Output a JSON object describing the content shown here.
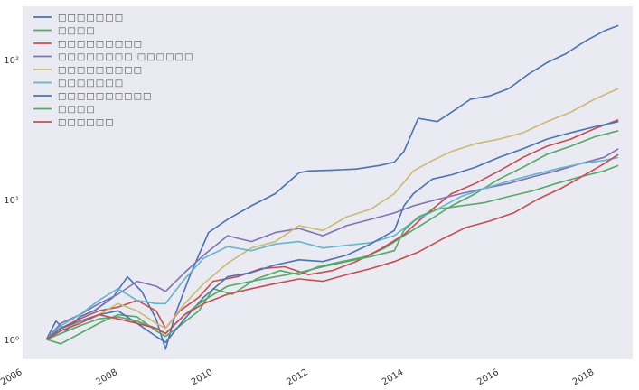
{
  "chart_data": {
    "type": "line",
    "title": "",
    "xlabel": "",
    "ylabel": "",
    "xlim": [
      2006.0,
      2018.8
    ],
    "ylim": [
      0.72,
      240
    ],
    "yscale": "log",
    "grid": false,
    "background": "#eaeaf2",
    "legend": {
      "location": "top-left"
    },
    "x_ticks": [
      2006,
      2008,
      2010,
      2012,
      2014,
      2016,
      2018
    ],
    "x_tick_labels": [
      "2006",
      "2008",
      "2010",
      "2012",
      "2014",
      "2016",
      "2018"
    ],
    "y_ticks": [
      1,
      10,
      100
    ],
    "y_tick_labels": [
      "10⁰",
      "10¹",
      "10²"
    ],
    "series": [
      {
        "name": "□□□□□□□",
        "color": "#4c72b0",
        "x": [
          2006.5,
          2006.7,
          2006.9,
          2007.2,
          2007.5,
          2007.9,
          2008.2,
          2008.5,
          2008.8,
          2009.0,
          2009.2,
          2009.5,
          2009.9,
          2010.3,
          2010.8,
          2011.3,
          2011.8,
          2012.0,
          2012.5,
          2013.0,
          2013.5,
          2013.8,
          2014.0,
          2014.3,
          2014.7,
          2015.0,
          2015.4,
          2015.8,
          2016.2,
          2016.6,
          2017.0,
          2017.4,
          2017.8,
          2018.2,
          2018.5
        ],
        "values": [
          1.0,
          1.35,
          1.15,
          1.45,
          1.6,
          2.0,
          2.8,
          2.2,
          1.4,
          0.85,
          1.5,
          2.8,
          5.8,
          7.2,
          9.0,
          11.0,
          15.5,
          16.0,
          16.2,
          16.5,
          17.5,
          18.5,
          22.0,
          38.0,
          36.0,
          42.0,
          52.0,
          55.0,
          62.0,
          78.0,
          95.0,
          110.0,
          135.0,
          160.0,
          175.0
        ]
      },
      {
        "name": "□□□□",
        "color": "#55a868",
        "x": [
          2006.5,
          2006.8,
          2007.2,
          2007.6,
          2008.0,
          2008.4,
          2008.8,
          2009.0,
          2009.3,
          2009.7,
          2010.0,
          2010.4,
          2010.9,
          2011.4,
          2011.8,
          2012.2,
          2012.7,
          2013.2,
          2013.6,
          2014.0,
          2014.5,
          2015.0,
          2015.5,
          2016.0,
          2016.5,
          2017.0,
          2017.5,
          2018.0,
          2018.5
        ],
        "values": [
          1.0,
          0.93,
          1.1,
          1.3,
          1.5,
          1.45,
          1.15,
          1.05,
          1.25,
          1.6,
          2.3,
          2.1,
          2.7,
          3.1,
          2.9,
          3.3,
          3.6,
          3.9,
          4.5,
          5.5,
          7.0,
          9.0,
          11.0,
          14.0,
          17.0,
          21.0,
          24.0,
          28.0,
          31.0
        ]
      },
      {
        "name": "□□□□□□□□□",
        "color": "#c44e52",
        "x": [
          2006.5,
          2006.8,
          2007.2,
          2007.6,
          2008.0,
          2008.4,
          2008.8,
          2009.0,
          2009.3,
          2009.7,
          2010.0,
          2010.5,
          2011.0,
          2011.5,
          2012.0,
          2012.5,
          2013.0,
          2013.5,
          2014.0,
          2014.5,
          2015.0,
          2015.5,
          2016.0,
          2016.5,
          2017.0,
          2017.5,
          2018.0,
          2018.5
        ],
        "values": [
          1.0,
          1.2,
          1.4,
          1.6,
          1.7,
          1.9,
          1.6,
          1.2,
          1.6,
          2.0,
          2.6,
          2.8,
          3.2,
          3.3,
          2.9,
          3.1,
          3.6,
          4.4,
          5.6,
          8.0,
          11.0,
          13.0,
          16.0,
          20.0,
          24.0,
          27.0,
          32.0,
          37.0
        ]
      },
      {
        "name": "□□□□□□□□ □□□□□□",
        "color": "#8172b2",
        "x": [
          2006.5,
          2006.8,
          2007.2,
          2007.6,
          2008.0,
          2008.4,
          2008.8,
          2009.0,
          2009.4,
          2009.8,
          2010.3,
          2010.8,
          2011.3,
          2011.8,
          2012.3,
          2012.8,
          2013.3,
          2013.8,
          2014.2,
          2014.7,
          2015.2,
          2015.7,
          2016.2,
          2016.7,
          2017.2,
          2017.7,
          2018.2,
          2018.5
        ],
        "values": [
          1.0,
          1.3,
          1.5,
          1.8,
          2.1,
          2.6,
          2.4,
          2.2,
          3.0,
          4.0,
          5.5,
          5.0,
          5.8,
          6.2,
          5.5,
          6.5,
          7.2,
          8.0,
          9.0,
          10.0,
          11.0,
          12.0,
          13.0,
          14.5,
          16.0,
          18.0,
          20.0,
          23.0
        ]
      },
      {
        "name": "□□□□□□□□□",
        "color": "#ccb974",
        "x": [
          2006.5,
          2006.8,
          2007.2,
          2007.6,
          2008.0,
          2008.4,
          2008.8,
          2009.0,
          2009.4,
          2009.8,
          2010.3,
          2010.8,
          2011.3,
          2011.8,
          2012.3,
          2012.8,
          2013.3,
          2013.8,
          2014.2,
          2014.6,
          2015.0,
          2015.5,
          2016.0,
          2016.5,
          2017.0,
          2017.5,
          2018.0,
          2018.5
        ],
        "values": [
          1.0,
          1.2,
          1.3,
          1.5,
          1.8,
          1.6,
          1.3,
          1.2,
          1.8,
          2.5,
          3.5,
          4.5,
          5.0,
          6.5,
          6.0,
          7.5,
          8.5,
          11.0,
          16.0,
          19.0,
          22.0,
          25.0,
          27.0,
          30.0,
          36.0,
          42.0,
          52.0,
          62.0
        ]
      },
      {
        "name": "□□□□□□□",
        "color": "#64b5cd",
        "x": [
          2006.5,
          2006.8,
          2007.2,
          2007.6,
          2008.0,
          2008.4,
          2008.8,
          2009.0,
          2009.4,
          2009.8,
          2010.3,
          2010.8,
          2011.3,
          2011.8,
          2012.3,
          2012.8,
          2013.3,
          2013.8,
          2014.2,
          2014.7,
          2015.2,
          2015.7,
          2016.2,
          2016.7,
          2017.2,
          2017.7,
          2018.2,
          2018.5
        ],
        "values": [
          1.0,
          1.25,
          1.5,
          1.9,
          2.3,
          1.9,
          1.8,
          1.8,
          2.7,
          3.8,
          4.6,
          4.3,
          4.8,
          5.0,
          4.5,
          4.7,
          4.9,
          5.5,
          7.0,
          8.5,
          10.5,
          12.0,
          13.5,
          15.0,
          16.5,
          18.0,
          19.0,
          20.0
        ]
      },
      {
        "name": "□□□□□□□□□□",
        "color": "#4c72b0",
        "x": [
          2006.5,
          2006.8,
          2007.2,
          2007.6,
          2008.0,
          2008.4,
          2008.8,
          2009.0,
          2009.4,
          2009.8,
          2010.3,
          2010.8,
          2011.3,
          2011.8,
          2012.3,
          2012.8,
          2013.3,
          2013.8,
          2014.0,
          2014.2,
          2014.6,
          2015.0,
          2015.5,
          2016.0,
          2016.5,
          2017.0,
          2017.5,
          2018.0,
          2018.5
        ],
        "values": [
          1.0,
          1.2,
          1.35,
          1.5,
          1.6,
          1.3,
          1.05,
          0.95,
          1.4,
          2.0,
          2.8,
          3.0,
          3.4,
          3.7,
          3.6,
          4.0,
          4.8,
          6.0,
          9.0,
          11.0,
          14.0,
          15.0,
          17.0,
          20.0,
          23.0,
          27.0,
          30.0,
          33.0,
          36.0
        ]
      },
      {
        "name": "□□□□",
        "color": "#55a868",
        "x": [
          2006.5,
          2006.8,
          2007.2,
          2007.6,
          2008.0,
          2008.4,
          2008.8,
          2009.0,
          2009.4,
          2009.8,
          2010.3,
          2010.8,
          2011.3,
          2011.8,
          2012.3,
          2012.8,
          2013.3,
          2013.8,
          2014.0,
          2014.3,
          2014.7,
          2015.2,
          2015.7,
          2016.2,
          2016.7,
          2017.2,
          2017.7,
          2018.2,
          2018.5
        ],
        "values": [
          1.0,
          1.1,
          1.25,
          1.4,
          1.45,
          1.35,
          1.2,
          1.1,
          1.5,
          1.9,
          2.4,
          2.6,
          2.8,
          3.0,
          3.3,
          3.6,
          3.9,
          4.3,
          6.0,
          7.5,
          8.5,
          9.0,
          9.5,
          10.5,
          11.5,
          13.0,
          14.5,
          16.0,
          17.5
        ]
      },
      {
        "name": "□□□□□□",
        "color": "#c44e52",
        "x": [
          2006.5,
          2006.8,
          2007.2,
          2007.6,
          2008.0,
          2008.4,
          2008.8,
          2009.0,
          2009.4,
          2009.8,
          2010.3,
          2010.8,
          2011.3,
          2011.8,
          2012.3,
          2012.8,
          2013.3,
          2013.8,
          2014.3,
          2014.8,
          2015.3,
          2015.8,
          2016.3,
          2016.8,
          2017.3,
          2017.8,
          2018.2,
          2018.5
        ],
        "values": [
          1.0,
          1.15,
          1.3,
          1.5,
          1.4,
          1.3,
          1.2,
          1.1,
          1.5,
          1.8,
          2.1,
          2.3,
          2.5,
          2.7,
          2.6,
          2.9,
          3.2,
          3.6,
          4.2,
          5.2,
          6.3,
          7.0,
          8.0,
          10.0,
          12.0,
          15.0,
          18.0,
          21.0
        ]
      }
    ]
  }
}
